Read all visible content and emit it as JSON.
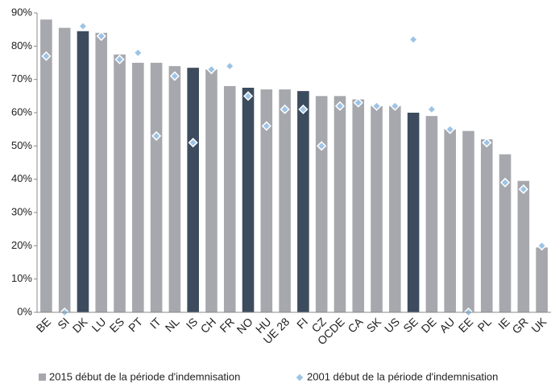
{
  "chart_data": {
    "type": "bar",
    "categories": [
      "BE",
      "SI",
      "DK",
      "LU",
      "ES",
      "PT",
      "IT",
      "NL",
      "IS",
      "CH",
      "FR",
      "NO",
      "HU",
      "UE 28",
      "FI",
      "CZ",
      "OCDE",
      "CA",
      "SK",
      "US",
      "SE",
      "DE",
      "AU",
      "EE",
      "PL",
      "IE",
      "GR",
      "UK"
    ],
    "series": [
      {
        "name": "2015 début de la période d'indemnisation",
        "type": "bar",
        "color": "#a6a8ad",
        "colors": [
          "#a6a8ad",
          "#a6a8ad",
          "#3d4b5e",
          "#a6a8ad",
          "#a6a8ad",
          "#a6a8ad",
          "#a6a8ad",
          "#a6a8ad",
          "#3d4b5e",
          "#a6a8ad",
          "#a6a8ad",
          "#3d4b5e",
          "#a6a8ad",
          "#a6a8ad",
          "#3d4b5e",
          "#a6a8ad",
          "#a6a8ad",
          "#a6a8ad",
          "#a6a8ad",
          "#a6a8ad",
          "#3d4b5e",
          "#a6a8ad",
          "#a6a8ad",
          "#a6a8ad",
          "#a6a8ad",
          "#a6a8ad",
          "#a6a8ad",
          "#a6a8ad"
        ],
        "values": [
          88,
          85.5,
          84.5,
          84,
          77.5,
          75,
          75,
          74,
          73.5,
          73,
          68,
          67.5,
          67,
          67,
          66.5,
          65,
          65,
          64,
          62,
          62,
          60,
          59,
          55,
          54.5,
          52,
          47.5,
          39.5,
          19.5
        ]
      },
      {
        "name": "2001 début de la période d'indemnisation",
        "type": "scatter",
        "color": "#9dc3e6",
        "values": [
          77,
          0,
          86,
          83,
          76,
          78,
          53,
          71,
          51,
          73,
          74,
          65,
          56,
          61,
          61,
          50,
          62,
          63,
          62,
          62,
          82,
          61,
          55,
          0,
          51,
          39,
          37,
          20
        ]
      }
    ],
    "ylim": [
      0,
      90
    ],
    "yticks": [
      {
        "value": 0,
        "label": "0%"
      },
      {
        "value": 10,
        "label": "10%"
      },
      {
        "value": 20,
        "label": "20%"
      },
      {
        "value": 30,
        "label": "30%"
      },
      {
        "value": 40,
        "label": "40%"
      },
      {
        "value": 50,
        "label": "50%"
      },
      {
        "value": 60,
        "label": "60%"
      },
      {
        "value": 70,
        "label": "70%"
      },
      {
        "value": 80,
        "label": "80%"
      },
      {
        "value": 90,
        "label": "90%"
      }
    ],
    "grid": false
  }
}
